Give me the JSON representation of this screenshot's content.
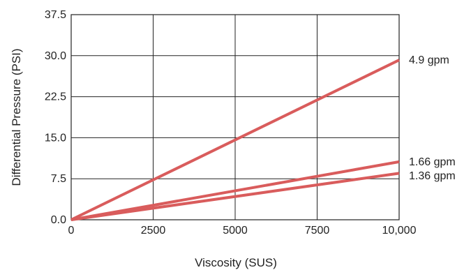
{
  "chart_data": {
    "type": "line",
    "xlabel": "Viscosity (SUS)",
    "ylabel": "Differential Pressure (PSI)",
    "xlim": [
      0,
      10000
    ],
    "ylim": [
      0,
      37.5
    ],
    "x_ticks": [
      "0",
      "2500",
      "5000",
      "7500",
      "10,000"
    ],
    "y_ticks": [
      "0.0",
      "7.5",
      "15.0",
      "22.5",
      "30.0",
      "37.5"
    ],
    "grid": true,
    "line_color": "#d95c5c",
    "series": [
      {
        "name": "4.9 gpm",
        "x": [
          0,
          10000
        ],
        "y": [
          0,
          29.2
        ]
      },
      {
        "name": "1.66 gpm",
        "x": [
          0,
          10000
        ],
        "y": [
          0,
          10.6
        ]
      },
      {
        "name": "1.36 gpm",
        "x": [
          0,
          10000
        ],
        "y": [
          0,
          8.5
        ]
      }
    ]
  }
}
